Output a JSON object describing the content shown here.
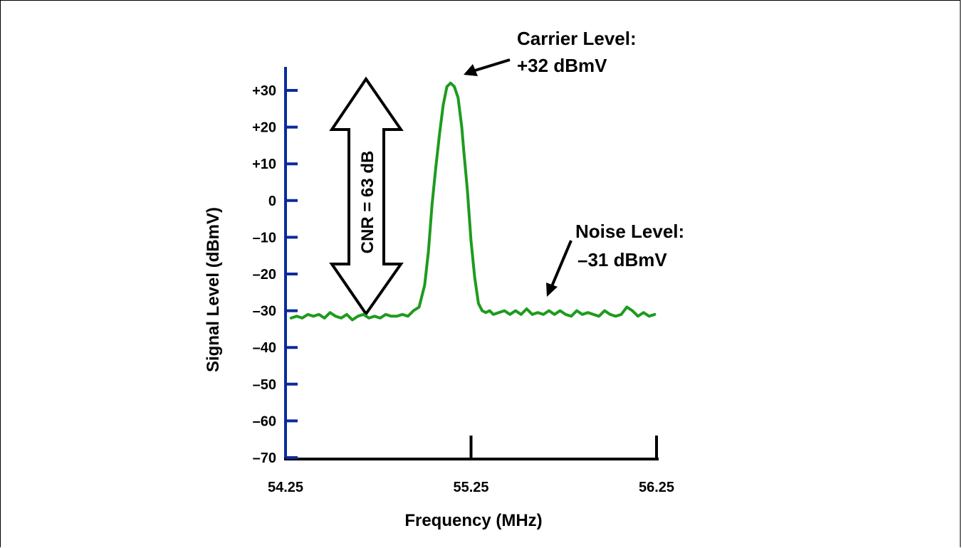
{
  "chart_data": {
    "type": "line",
    "title": "",
    "xlabel": "Frequency (MHz)",
    "ylabel": "Signal Level (dBmV)",
    "xlim": [
      54.25,
      56.25
    ],
    "ylim": [
      -70,
      35
    ],
    "x_ticks": [
      54.25,
      55.25,
      56.25
    ],
    "x_tick_labels": [
      "54.25",
      "55.25",
      "56.25"
    ],
    "y_ticks": [
      30,
      20,
      10,
      0,
      -10,
      -20,
      -30,
      -40,
      -50,
      -60,
      -70
    ],
    "y_tick_labels": [
      "+30",
      "+20",
      "+10",
      "0",
      "–10",
      "–20",
      "–30",
      "–40",
      "–50",
      "–60",
      "–70"
    ],
    "grid": false,
    "series": [
      {
        "color": "#1e9b1e",
        "x": [
          54.28,
          54.31,
          54.34,
          54.37,
          54.4,
          54.43,
          54.46,
          54.49,
          54.52,
          54.55,
          54.58,
          54.61,
          54.64,
          54.67,
          54.7,
          54.73,
          54.76,
          54.79,
          54.82,
          54.85,
          54.88,
          54.91,
          54.94,
          54.97,
          55.0,
          55.02,
          55.04,
          55.06,
          55.08,
          55.1,
          55.12,
          55.14,
          55.16,
          55.18,
          55.19,
          55.2,
          55.21,
          55.23,
          55.25,
          55.27,
          55.29,
          55.31,
          55.33,
          55.35,
          55.37,
          55.4,
          55.43,
          55.46,
          55.49,
          55.52,
          55.55,
          55.58,
          55.61,
          55.64,
          55.67,
          55.7,
          55.73,
          55.76,
          55.79,
          55.82,
          55.85,
          55.88,
          55.91,
          55.94,
          55.97,
          56.0,
          56.03,
          56.06,
          56.09,
          56.12,
          56.15,
          56.18,
          56.21,
          56.24
        ],
        "y": [
          -32,
          -31.5,
          -32,
          -31,
          -31.5,
          -31,
          -32,
          -30.5,
          -31.5,
          -32,
          -31,
          -32.5,
          -31.5,
          -31,
          -32,
          -31.5,
          -32,
          -31,
          -31.5,
          -31.5,
          -31,
          -31.5,
          -30,
          -29,
          -23,
          -14,
          -1,
          9,
          18,
          26,
          31,
          32,
          31,
          28,
          24,
          20,
          14,
          3,
          -11,
          -21,
          -28,
          -30,
          -30.5,
          -30,
          -31,
          -30.5,
          -30,
          -31,
          -30,
          -31,
          -29.5,
          -31,
          -30.5,
          -31,
          -30,
          -31,
          -30,
          -31,
          -31.5,
          -30,
          -31,
          -30.5,
          -31,
          -31.5,
          -30,
          -31,
          -31.5,
          -31,
          -29,
          -30,
          -31.5,
          -30.5,
          -31.5,
          -31
        ]
      }
    ],
    "annotations": {
      "carrier_line1": "Carrier Level:",
      "carrier_line2": "+32 dBmV",
      "noise_line1": "Noise Level:",
      "noise_line2": "–31 dBmV",
      "cnr_label": "CNR = 63 dB"
    }
  }
}
